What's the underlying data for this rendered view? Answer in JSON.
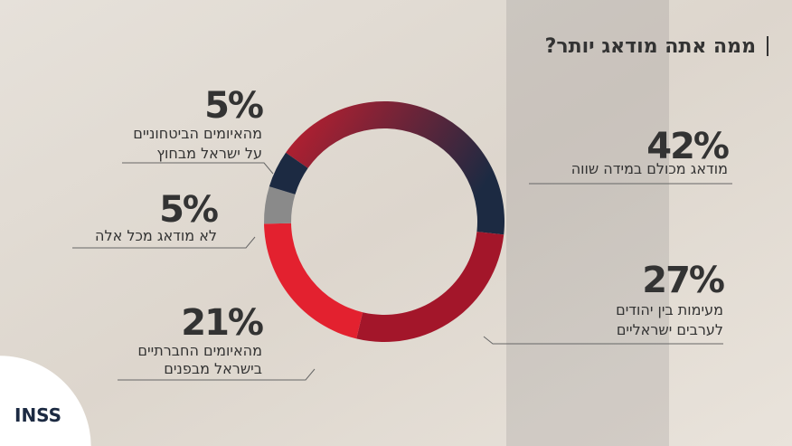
{
  "chart_data": {
    "type": "donut",
    "title": "ממה אתה מודאג יותר?",
    "categories": [
      [
        "מודאג מכולם במידה שווה"
      ],
      [
        "מעימות בין יהודים",
        "לערבים ישראליים"
      ],
      [
        "מהאיומים החברתיים",
        "בישראל מבפנים"
      ],
      [
        "לא מודאג מכל אלה"
      ],
      [
        "מהאיומים הביטחוניים",
        "על ישראל מבחוץ"
      ]
    ],
    "values": [
      42,
      27,
      21,
      5,
      5
    ],
    "value_labels": [
      "42%",
      "27%",
      "21%",
      "5%",
      "5%"
    ],
    "colors": [
      "#1c2a42",
      "#a3162a",
      "#e3212f",
      "#8a8a8a",
      "#1c2a42"
    ],
    "logo": "INSS"
  }
}
